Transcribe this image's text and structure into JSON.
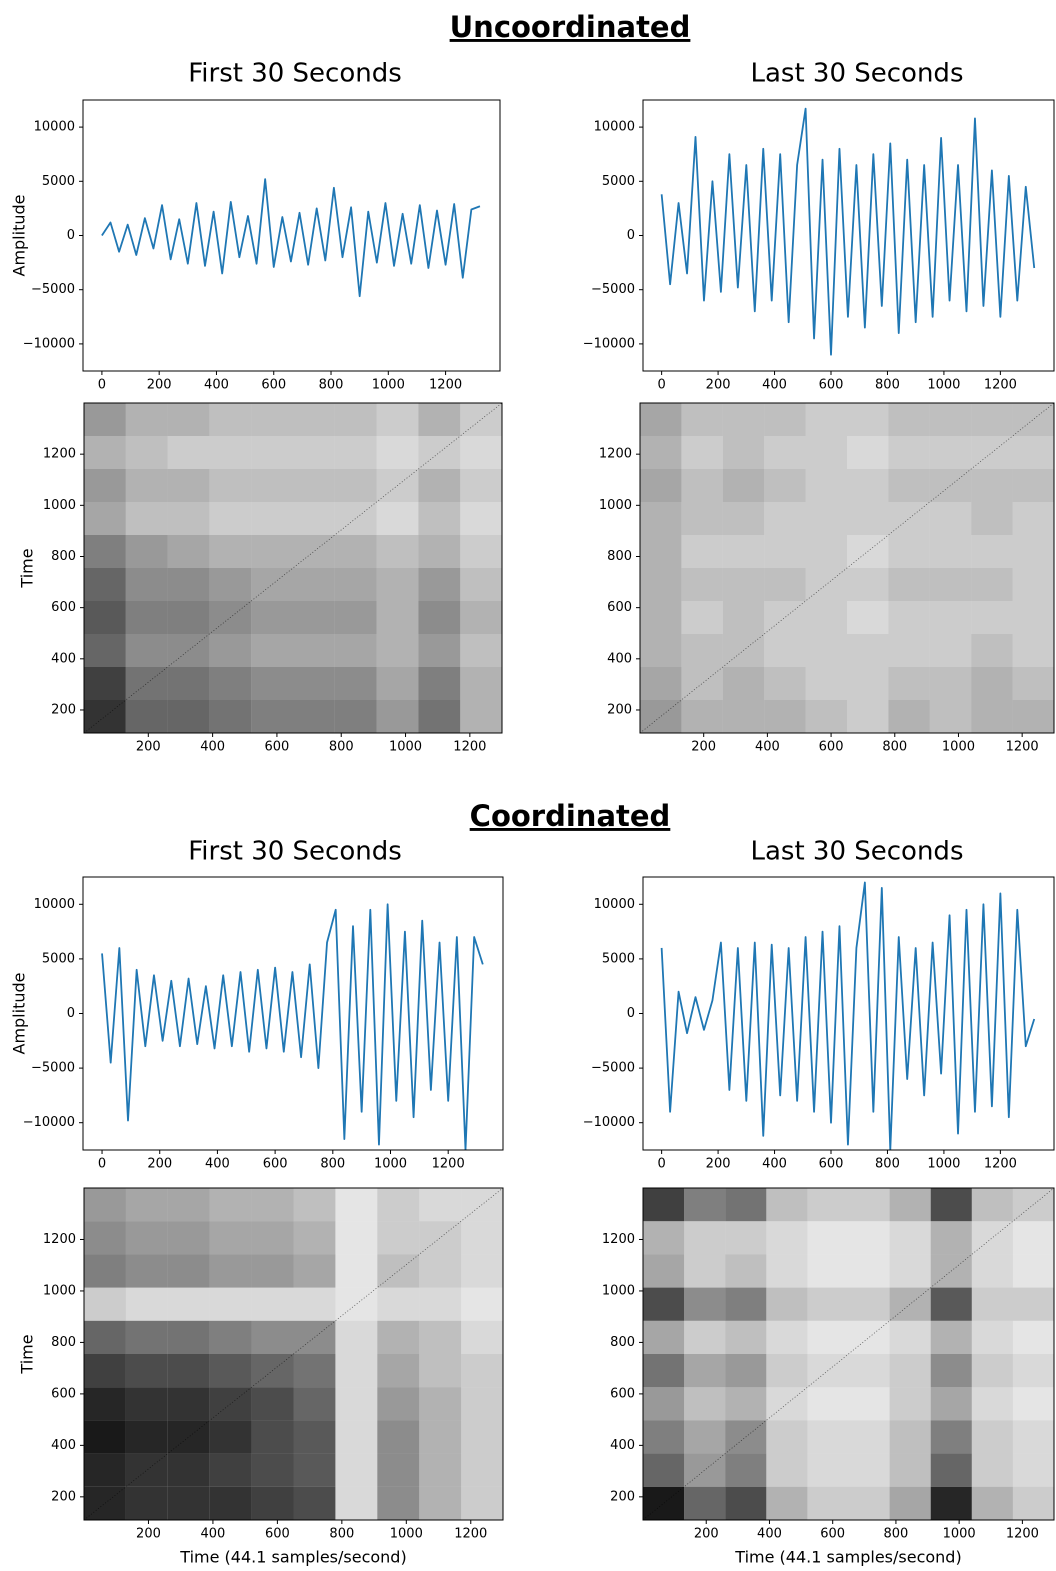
{
  "figure": {
    "sections": [
      {
        "title": "Uncoordinated",
        "columns": [
          "First 30 Seconds",
          "Last 30 Seconds"
        ]
      },
      {
        "title": "Coordinated",
        "columns": [
          "First 30 Seconds",
          "Last 30 Seconds"
        ]
      }
    ]
  },
  "chart_data": [
    {
      "type": "line",
      "ylabel": "Amplitude",
      "color": "#1f77b4",
      "xlim": [
        -66,
        1390
      ],
      "ylim": [
        -12500,
        12500
      ],
      "xticks": [
        0,
        200,
        400,
        600,
        800,
        1000,
        1200
      ],
      "yticks": [
        {
          "value": -10000,
          "label": "−10000"
        },
        {
          "value": -5000,
          "label": "−5000"
        },
        0,
        5000,
        10000
      ],
      "x": [
        0,
        30,
        60,
        90,
        120,
        150,
        180,
        210,
        240,
        270,
        300,
        330,
        360,
        390,
        420,
        450,
        480,
        510,
        540,
        570,
        600,
        630,
        660,
        690,
        720,
        750,
        780,
        810,
        840,
        870,
        900,
        930,
        960,
        990,
        1020,
        1050,
        1080,
        1110,
        1140,
        1170,
        1200,
        1230,
        1260,
        1290,
        1320
      ],
      "values": [
        0,
        1200,
        -1500,
        1000,
        -1800,
        1600,
        -1200,
        2800,
        -2200,
        1500,
        -2600,
        3000,
        -2800,
        2200,
        -3500,
        3100,
        -2000,
        1800,
        -2600,
        5200,
        -2900,
        1700,
        -2400,
        2100,
        -2700,
        2500,
        -2300,
        4400,
        -2000,
        2600,
        -5600,
        2200,
        -2500,
        3000,
        -2800,
        2000,
        -2600,
        2800,
        -3000,
        2300,
        -2700,
        2900,
        -3900,
        2400,
        2700
      ]
    },
    {
      "type": "heatmap",
      "ylabel": "Time",
      "xlim": [
        0,
        1300
      ],
      "ylim": [
        110,
        1400
      ],
      "xticks": [
        200,
        400,
        600,
        800,
        1000,
        1200
      ],
      "yticks": [
        200,
        400,
        600,
        800,
        1000,
        1200
      ],
      "xbins": [
        0,
        130,
        260,
        390,
        520,
        650,
        780,
        910,
        1040,
        1170,
        1300
      ],
      "ybins": [
        110,
        239,
        368,
        497,
        626,
        755,
        884,
        1013,
        1142,
        1271,
        1400
      ],
      "values": [
        [
          0.8,
          0.6,
          0.6,
          0.55,
          0.5,
          0.5,
          0.5,
          0.4,
          0.55,
          0.3
        ],
        [
          0.75,
          0.55,
          0.55,
          0.5,
          0.45,
          0.45,
          0.45,
          0.35,
          0.5,
          0.3
        ],
        [
          0.6,
          0.45,
          0.45,
          0.4,
          0.35,
          0.35,
          0.35,
          0.3,
          0.4,
          0.25
        ],
        [
          0.65,
          0.5,
          0.5,
          0.45,
          0.4,
          0.4,
          0.4,
          0.3,
          0.45,
          0.3
        ],
        [
          0.6,
          0.45,
          0.45,
          0.4,
          0.35,
          0.35,
          0.35,
          0.3,
          0.4,
          0.25
        ],
        [
          0.5,
          0.4,
          0.35,
          0.3,
          0.3,
          0.3,
          0.3,
          0.25,
          0.3,
          0.2
        ],
        [
          0.35,
          0.25,
          0.25,
          0.2,
          0.2,
          0.2,
          0.2,
          0.15,
          0.25,
          0.15
        ],
        [
          0.4,
          0.3,
          0.3,
          0.25,
          0.25,
          0.25,
          0.25,
          0.2,
          0.3,
          0.2
        ],
        [
          0.3,
          0.25,
          0.2,
          0.2,
          0.2,
          0.2,
          0.2,
          0.15,
          0.2,
          0.15
        ],
        [
          0.4,
          0.3,
          0.3,
          0.25,
          0.25,
          0.25,
          0.25,
          0.2,
          0.3,
          0.2
        ]
      ]
    },
    {
      "type": "line",
      "color": "#1f77b4",
      "xlim": [
        -66,
        1390
      ],
      "ylim": [
        -12500,
        12500
      ],
      "xticks": [
        0,
        200,
        400,
        600,
        800,
        1000,
        1200
      ],
      "yticks": [
        {
          "value": -10000,
          "label": "−10000"
        },
        {
          "value": -5000,
          "label": "−5000"
        },
        0,
        5000,
        10000
      ],
      "x": [
        0,
        30,
        60,
        90,
        120,
        150,
        180,
        210,
        240,
        270,
        300,
        330,
        360,
        390,
        420,
        450,
        480,
        510,
        540,
        570,
        600,
        630,
        660,
        690,
        720,
        750,
        780,
        810,
        840,
        870,
        900,
        930,
        960,
        990,
        1020,
        1050,
        1080,
        1110,
        1140,
        1170,
        1200,
        1230,
        1260,
        1290,
        1320
      ],
      "values": [
        3800,
        -4500,
        3000,
        -3500,
        9100,
        -6000,
        5000,
        -5200,
        7500,
        -4800,
        6500,
        -7000,
        8000,
        -6000,
        7500,
        -8000,
        6500,
        11700,
        -9500,
        7000,
        -11000,
        8000,
        -7500,
        6500,
        -8500,
        7500,
        -6500,
        8500,
        -9000,
        7000,
        -8000,
        6500,
        -7500,
        9000,
        -6000,
        6500,
        -7000,
        10800,
        -6500,
        6000,
        -7500,
        5500,
        -6000,
        4500,
        -3000
      ]
    },
    {
      "type": "heatmap",
      "xlim": [
        0,
        1300
      ],
      "ylim": [
        110,
        1400
      ],
      "xticks": [
        200,
        400,
        600,
        800,
        1000,
        1200
      ],
      "yticks": [
        200,
        400,
        600,
        800,
        1000,
        1200
      ],
      "xbins": [
        0,
        130,
        260,
        390,
        520,
        650,
        780,
        910,
        1040,
        1170,
        1300
      ],
      "ybins": [
        110,
        239,
        368,
        497,
        626,
        755,
        884,
        1013,
        1142,
        1271,
        1400
      ],
      "values": [
        [
          0.4,
          0.3,
          0.3,
          0.3,
          0.25,
          0.2,
          0.3,
          0.25,
          0.3,
          0.3
        ],
        [
          0.35,
          0.25,
          0.3,
          0.25,
          0.2,
          0.2,
          0.25,
          0.25,
          0.3,
          0.25
        ],
        [
          0.3,
          0.25,
          0.25,
          0.2,
          0.2,
          0.2,
          0.2,
          0.2,
          0.25,
          0.2
        ],
        [
          0.3,
          0.2,
          0.25,
          0.2,
          0.2,
          0.15,
          0.2,
          0.2,
          0.2,
          0.2
        ],
        [
          0.3,
          0.25,
          0.25,
          0.25,
          0.2,
          0.2,
          0.25,
          0.25,
          0.25,
          0.2
        ],
        [
          0.3,
          0.2,
          0.2,
          0.2,
          0.2,
          0.15,
          0.2,
          0.2,
          0.2,
          0.2
        ],
        [
          0.3,
          0.25,
          0.25,
          0.2,
          0.2,
          0.2,
          0.2,
          0.2,
          0.25,
          0.2
        ],
        [
          0.35,
          0.25,
          0.3,
          0.25,
          0.2,
          0.2,
          0.25,
          0.25,
          0.25,
          0.25
        ],
        [
          0.3,
          0.2,
          0.25,
          0.2,
          0.2,
          0.15,
          0.2,
          0.2,
          0.2,
          0.2
        ],
        [
          0.35,
          0.25,
          0.25,
          0.25,
          0.2,
          0.2,
          0.25,
          0.25,
          0.25,
          0.25
        ]
      ]
    },
    {
      "type": "line",
      "ylabel": "Amplitude",
      "color": "#1f77b4",
      "xlim": [
        -66,
        1390
      ],
      "ylim": [
        -12500,
        12500
      ],
      "xticks": [
        0,
        200,
        400,
        600,
        800,
        1000,
        1200
      ],
      "yticks": [
        {
          "value": -10000,
          "label": "−10000"
        },
        {
          "value": -5000,
          "label": "−5000"
        },
        0,
        5000,
        10000
      ],
      "x": [
        0,
        30,
        60,
        90,
        120,
        150,
        180,
        210,
        240,
        270,
        300,
        330,
        360,
        390,
        420,
        450,
        480,
        510,
        540,
        570,
        600,
        630,
        660,
        690,
        720,
        750,
        780,
        810,
        840,
        870,
        900,
        930,
        960,
        990,
        1020,
        1050,
        1080,
        1110,
        1140,
        1170,
        1200,
        1230,
        1260,
        1290,
        1320
      ],
      "values": [
        5500,
        -4500,
        6000,
        -9800,
        4000,
        -3000,
        3500,
        -2500,
        3000,
        -3000,
        3200,
        -2800,
        2500,
        -3200,
        3500,
        -3000,
        3800,
        -3500,
        4000,
        -3200,
        4200,
        -3500,
        3800,
        -4000,
        4500,
        -5000,
        6500,
        9500,
        -11500,
        8000,
        -9000,
        9500,
        -12000,
        10000,
        -8000,
        7500,
        -9500,
        8500,
        -7000,
        6500,
        -8000,
        7000,
        -12500,
        7000,
        4500
      ]
    },
    {
      "type": "heatmap",
      "ylabel": "Time",
      "xlabel": "Time (44.1 samples/second)",
      "xlim": [
        0,
        1300
      ],
      "ylim": [
        110,
        1400
      ],
      "xticks": [
        200,
        400,
        600,
        800,
        1000,
        1200
      ],
      "yticks": [
        200,
        400,
        600,
        800,
        1000,
        1200
      ],
      "xbins": [
        0,
        130,
        260,
        390,
        520,
        650,
        780,
        910,
        1040,
        1170,
        1300
      ],
      "ybins": [
        110,
        239,
        368,
        497,
        626,
        755,
        884,
        1013,
        1142,
        1271,
        1400
      ],
      "values": [
        [
          0.85,
          0.8,
          0.8,
          0.8,
          0.75,
          0.7,
          0.15,
          0.45,
          0.3,
          0.2
        ],
        [
          0.85,
          0.8,
          0.8,
          0.75,
          0.7,
          0.65,
          0.15,
          0.45,
          0.3,
          0.2
        ],
        [
          0.9,
          0.85,
          0.85,
          0.8,
          0.7,
          0.65,
          0.15,
          0.45,
          0.3,
          0.2
        ],
        [
          0.85,
          0.8,
          0.8,
          0.75,
          0.7,
          0.6,
          0.15,
          0.4,
          0.3,
          0.2
        ],
        [
          0.75,
          0.7,
          0.7,
          0.65,
          0.6,
          0.55,
          0.15,
          0.35,
          0.25,
          0.2
        ],
        [
          0.6,
          0.55,
          0.55,
          0.5,
          0.45,
          0.45,
          0.15,
          0.3,
          0.25,
          0.15
        ],
        [
          0.2,
          0.15,
          0.15,
          0.15,
          0.15,
          0.15,
          0.1,
          0.15,
          0.15,
          0.1
        ],
        [
          0.5,
          0.45,
          0.45,
          0.4,
          0.4,
          0.35,
          0.1,
          0.25,
          0.2,
          0.15
        ],
        [
          0.45,
          0.4,
          0.4,
          0.35,
          0.35,
          0.3,
          0.1,
          0.2,
          0.2,
          0.15
        ],
        [
          0.4,
          0.35,
          0.35,
          0.3,
          0.3,
          0.25,
          0.1,
          0.2,
          0.15,
          0.15
        ]
      ]
    },
    {
      "type": "line",
      "color": "#1f77b4",
      "xlim": [
        -66,
        1390
      ],
      "ylim": [
        -12500,
        12500
      ],
      "xticks": [
        0,
        200,
        400,
        600,
        800,
        1000,
        1200
      ],
      "yticks": [
        {
          "value": -10000,
          "label": "−10000"
        },
        {
          "value": -5000,
          "label": "−5000"
        },
        0,
        5000,
        10000
      ],
      "x": [
        0,
        30,
        60,
        90,
        120,
        150,
        180,
        210,
        240,
        270,
        300,
        330,
        360,
        390,
        420,
        450,
        480,
        510,
        540,
        570,
        600,
        630,
        660,
        690,
        720,
        750,
        780,
        810,
        840,
        870,
        900,
        930,
        960,
        990,
        1020,
        1050,
        1080,
        1110,
        1140,
        1170,
        1200,
        1230,
        1260,
        1290,
        1320
      ],
      "values": [
        6000,
        -9000,
        2000,
        -1800,
        1500,
        -1500,
        1200,
        6500,
        -7000,
        6000,
        -8000,
        6500,
        -11200,
        6300,
        -7500,
        6000,
        -8000,
        7000,
        -9000,
        7500,
        -10000,
        8000,
        -12000,
        6000,
        12000,
        -9000,
        11500,
        -12500,
        7000,
        -6000,
        6000,
        -7500,
        6500,
        -5500,
        9000,
        -11000,
        9500,
        -9000,
        10000,
        -8500,
        11000,
        -9500,
        9500,
        -3000,
        -500
      ]
    },
    {
      "type": "heatmap",
      "xlabel": "Time (44.1 samples/second)",
      "xlim": [
        0,
        1300
      ],
      "ylim": [
        110,
        1400
      ],
      "xticks": [
        200,
        400,
        600,
        800,
        1000,
        1200
      ],
      "yticks": [
        200,
        400,
        600,
        800,
        1000,
        1200
      ],
      "xbins": [
        0,
        130,
        260,
        390,
        520,
        650,
        780,
        910,
        1040,
        1170,
        1300
      ],
      "ybins": [
        110,
        239,
        368,
        497,
        626,
        755,
        884,
        1013,
        1142,
        1271,
        1400
      ],
      "values": [
        [
          0.9,
          0.6,
          0.7,
          0.3,
          0.2,
          0.2,
          0.35,
          0.85,
          0.3,
          0.2
        ],
        [
          0.6,
          0.4,
          0.5,
          0.2,
          0.15,
          0.15,
          0.25,
          0.6,
          0.2,
          0.15
        ],
        [
          0.5,
          0.35,
          0.45,
          0.2,
          0.15,
          0.15,
          0.25,
          0.5,
          0.2,
          0.15
        ],
        [
          0.4,
          0.25,
          0.3,
          0.15,
          0.1,
          0.1,
          0.2,
          0.35,
          0.15,
          0.1
        ],
        [
          0.55,
          0.35,
          0.4,
          0.2,
          0.15,
          0.15,
          0.2,
          0.45,
          0.2,
          0.15
        ],
        [
          0.35,
          0.2,
          0.25,
          0.15,
          0.1,
          0.1,
          0.15,
          0.3,
          0.15,
          0.1
        ],
        [
          0.7,
          0.45,
          0.5,
          0.25,
          0.2,
          0.2,
          0.3,
          0.65,
          0.2,
          0.2
        ],
        [
          0.35,
          0.2,
          0.25,
          0.15,
          0.1,
          0.1,
          0.15,
          0.3,
          0.15,
          0.1
        ],
        [
          0.3,
          0.2,
          0.2,
          0.15,
          0.1,
          0.1,
          0.15,
          0.3,
          0.15,
          0.1
        ],
        [
          0.75,
          0.5,
          0.55,
          0.25,
          0.2,
          0.2,
          0.3,
          0.7,
          0.25,
          0.2
        ]
      ]
    }
  ]
}
